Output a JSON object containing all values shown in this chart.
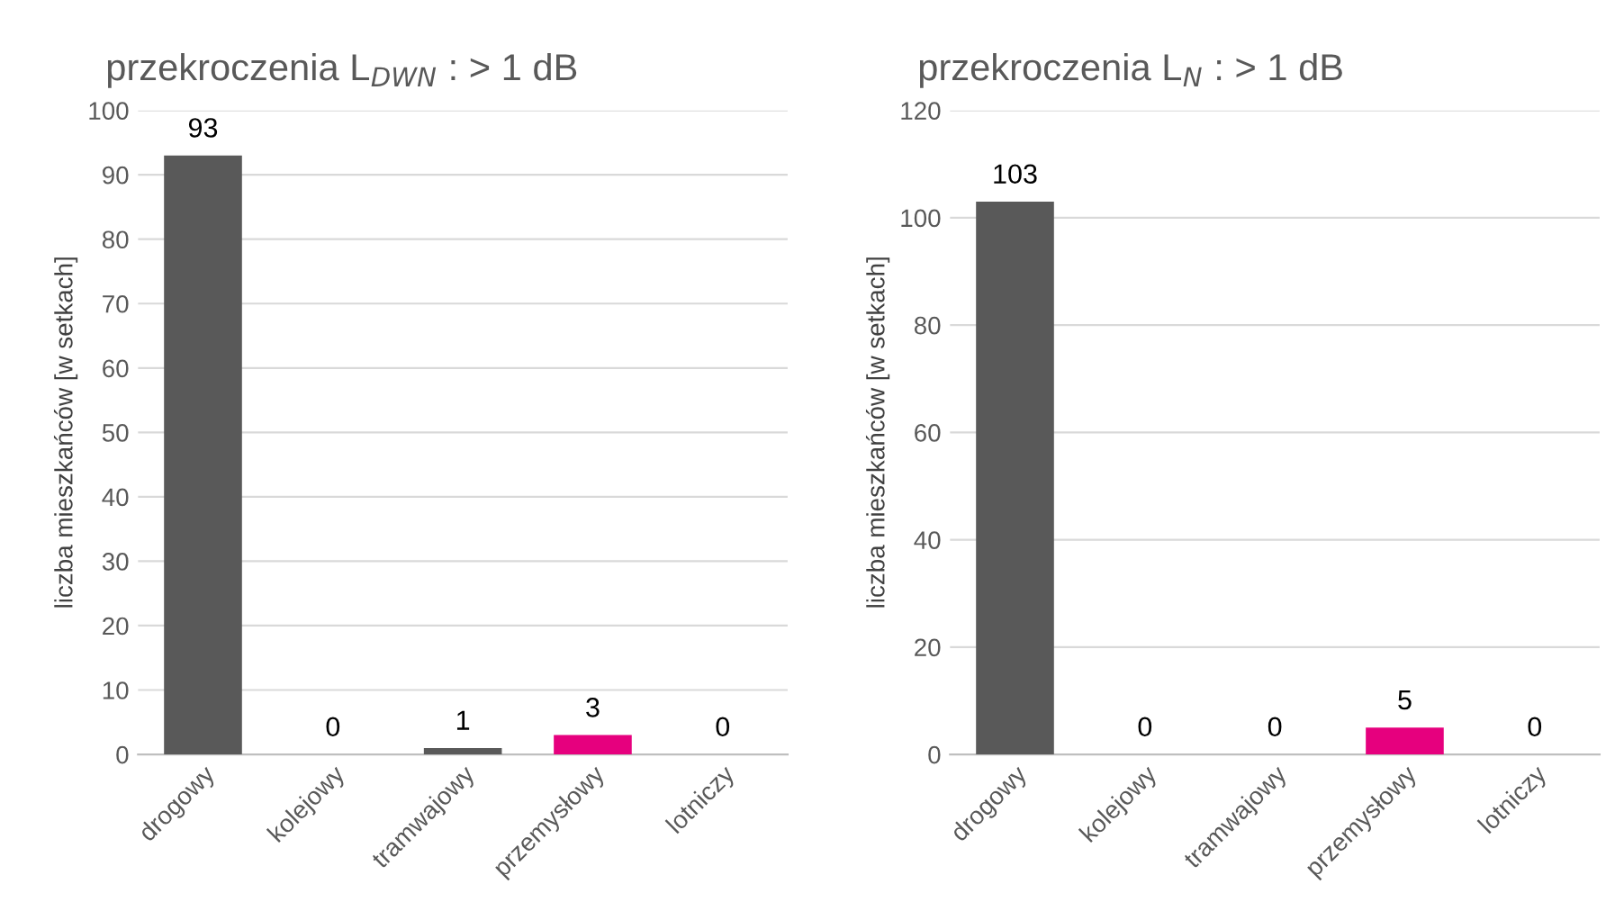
{
  "chart_data": [
    {
      "type": "bar",
      "title": "przekroczenia L$_{DWN}$ : > 1 dB",
      "ylabel": "liczba mieszkańców [w setkach]",
      "categories": [
        "drogowy",
        "kolejowy",
        "tramwajowy",
        "przemysłowy",
        "lotniczy"
      ],
      "values": [
        93,
        0,
        1,
        3,
        0
      ],
      "colors": [
        "#595959",
        "#595959",
        "#595959",
        "#e6007e",
        "#595959"
      ],
      "ylim": [
        0,
        100
      ],
      "yticks": [
        0,
        10,
        20,
        30,
        40,
        50,
        60,
        70,
        80,
        90,
        100
      ],
      "grid": "y",
      "legend": false,
      "data_labels": true
    },
    {
      "type": "bar",
      "title": "przekroczenia L$_{N}$ : > 1 dB",
      "ylabel": "liczba mieszkańców [w setkach]",
      "categories": [
        "drogowy",
        "kolejowy",
        "tramwajowy",
        "przemysłowy",
        "lotniczy"
      ],
      "values": [
        103,
        0,
        0,
        5,
        0
      ],
      "colors": [
        "#595959",
        "#595959",
        "#595959",
        "#e6007e",
        "#595959"
      ],
      "ylim": [
        0,
        120
      ],
      "yticks": [
        0,
        20,
        40,
        60,
        80,
        100,
        120
      ],
      "grid": "y",
      "legend": false,
      "data_labels": true
    }
  ]
}
